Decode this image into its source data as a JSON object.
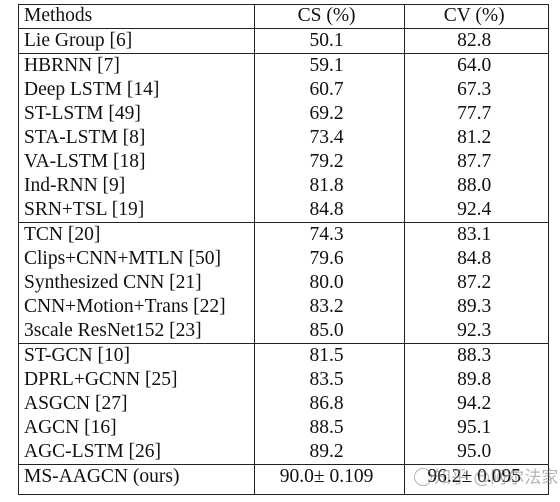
{
  "table": {
    "headers": [
      "Methods",
      "CS (%)",
      "CV (%)"
    ],
    "groups": [
      [
        {
          "method": "Lie Group [6]",
          "cs": "50.1",
          "cv": "82.8"
        }
      ],
      [
        {
          "method": "HBRNN [7]",
          "cs": "59.1",
          "cv": "64.0"
        },
        {
          "method": "Deep LSTM [14]",
          "cs": "60.7",
          "cv": "67.3"
        },
        {
          "method": "ST-LSTM [49]",
          "cs": "69.2",
          "cv": "77.7"
        },
        {
          "method": "STA-LSTM [8]",
          "cs": "73.4",
          "cv": "81.2"
        },
        {
          "method": "VA-LSTM [18]",
          "cs": "79.2",
          "cv": "87.7"
        },
        {
          "method": "Ind-RNN [9]",
          "cs": "81.8",
          "cv": "88.0"
        },
        {
          "method": "SRN+TSL [19]",
          "cs": "84.8",
          "cv": "92.4"
        }
      ],
      [
        {
          "method": "TCN [20]",
          "cs": "74.3",
          "cv": "83.1"
        },
        {
          "method": "Clips+CNN+MTLN [50]",
          "cs": "79.6",
          "cv": "84.8"
        },
        {
          "method": "Synthesized CNN [21]",
          "cs": "80.0",
          "cv": "87.2"
        },
        {
          "method": "CNN+Motion+Trans [22]",
          "cs": "83.2",
          "cv": "89.3"
        },
        {
          "method": "3scale ResNet152 [23]",
          "cs": "85.0",
          "cv": "92.3"
        }
      ],
      [
        {
          "method": "ST-GCN [10]",
          "cs": "81.5",
          "cv": "88.3"
        },
        {
          "method": "DPRL+GCNN [25]",
          "cs": "83.5",
          "cv": "89.8"
        },
        {
          "method": "ASGCN [27]",
          "cs": "86.8",
          "cv": "94.2"
        },
        {
          "method": "AGCN [16]",
          "cs": "88.5",
          "cv": "95.1"
        },
        {
          "method": "AGC-LSTM [26]",
          "cs": "89.2",
          "cv": "95.0"
        }
      ]
    ],
    "final": {
      "method": "MS-AAGCN (ours)",
      "cs": "90.0± 0.109",
      "cv": "96.2± 0.095"
    }
  },
  "watermark": {
    "text": "知乎 @阿尔法家",
    "icon": "zhihu-logo-icon"
  }
}
